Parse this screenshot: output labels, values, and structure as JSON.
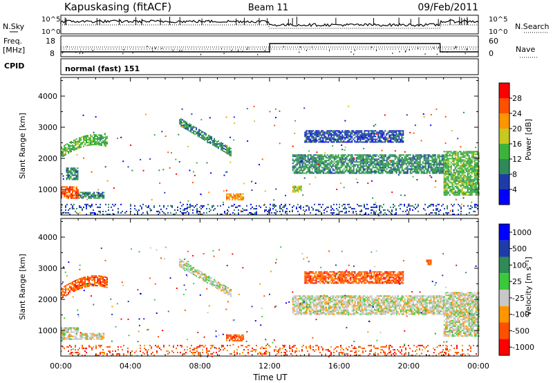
{
  "header": {
    "station": "Kapuskasing (fitACF)",
    "beam": "Beam 11",
    "date": "09/Feb/2011"
  },
  "strips": {
    "nsky": {
      "label": "N.Sky",
      "ticks": [
        "10^5",
        "10^0"
      ],
      "right_label": "N.Search",
      "right_ticks": [
        "10^5",
        "10^0"
      ]
    },
    "freq": {
      "label_line1": "Freq.",
      "label_line2": "[MHz]",
      "ticks": [
        "18",
        "8"
      ],
      "right_label": "Nave",
      "right_ticks": [
        "60",
        "0"
      ]
    },
    "cpid": {
      "label": "CPID",
      "value": "normal (fast) 151"
    }
  },
  "colors": {
    "power": [
      "#0000ff",
      "#1e3ca8",
      "#2e8b57",
      "#3cb43c",
      "#c8c820",
      "#ff9600",
      "#ff5000",
      "#ff0000"
    ],
    "velocity": [
      "#0000ff",
      "#1e3ca8",
      "#2e8b57",
      "#3cc83c",
      "#c8c8c8",
      "#ff9600",
      "#ff5000",
      "#ff0000"
    ]
  },
  "chart_data": [
    {
      "type": "heatmap",
      "title": "",
      "xlabel": "Time UT",
      "ylabel": "Slant Range [km]",
      "xlim": [
        "00:00",
        "24:00"
      ],
      "ylim": [
        180,
        4600
      ],
      "x_ticks": [
        "00:00",
        "04:00",
        "08:00",
        "12:00",
        "16:00",
        "20:00",
        "00:00"
      ],
      "y_ticks": [
        "1000",
        "2000",
        "3000",
        "4000"
      ],
      "colorbar": {
        "label": "Power [dB]",
        "ticks": [
          "4",
          "8",
          "12",
          "16",
          "20",
          "24",
          "28"
        ]
      },
      "regions": [
        {
          "name": "near-range echo 00:00-01:00",
          "t": [
            0.0,
            1.0
          ],
          "range_km": [
            700,
            1100
          ],
          "value_db": 26
        },
        {
          "name": "near-range echo 01:00-02:30",
          "t": [
            1.0,
            2.5
          ],
          "range_km": [
            700,
            900
          ],
          "value_db": 10
        },
        {
          "name": "arc 00:00-02:40",
          "t": [
            0.0,
            2.7
          ],
          "range_km": [
            2000,
            2700
          ],
          "value_db": 12
        },
        {
          "name": "echo 00:20-01:00",
          "t": [
            0.3,
            1.0
          ],
          "range_km": [
            1300,
            1700
          ],
          "value_db": 10
        },
        {
          "name": "descending arc 06:50-09:50",
          "t": [
            6.8,
            9.8
          ],
          "range_km": [
            2100,
            3200
          ],
          "value_db": 8
        },
        {
          "name": "echo 09:30-10:30",
          "t": [
            9.5,
            10.5
          ],
          "range_km": [
            650,
            850
          ],
          "value_db": 20
        },
        {
          "name": "echo 13:20-13:50",
          "t": [
            13.3,
            13.8
          ],
          "range_km": [
            900,
            1100
          ],
          "value_db": 16
        },
        {
          "name": "band 13:30-22:00",
          "t": [
            13.3,
            22.0
          ],
          "range_km": [
            1500,
            2100
          ],
          "value_db": 8
        },
        {
          "name": "band 14:00-19:40",
          "t": [
            14.0,
            19.7
          ],
          "range_km": [
            2500,
            2900
          ],
          "value_db": 6
        },
        {
          "name": "echo 22:00-24:00",
          "t": [
            22.0,
            24.0
          ],
          "range_km": [
            800,
            2200
          ],
          "value_db": 14
        },
        {
          "name": "near-range noise 00:00-24:00",
          "t": [
            0.0,
            24.0
          ],
          "range_km": [
            180,
            500
          ],
          "value_db": 5
        }
      ]
    },
    {
      "type": "heatmap",
      "title": "",
      "xlabel": "Time UT",
      "ylabel": "Slant Range [km]",
      "xlim": [
        "00:00",
        "24:00"
      ],
      "ylim": [
        180,
        4600
      ],
      "x_ticks": [
        "00:00",
        "04:00",
        "08:00",
        "12:00",
        "16:00",
        "20:00",
        "00:00"
      ],
      "y_ticks": [
        "1000",
        "2000",
        "3000",
        "4000"
      ],
      "colorbar": {
        "label": "Velocity [m s⁻¹]",
        "ticks": [
          "1000",
          "500",
          "100",
          "25",
          "-25",
          "-100",
          "-500",
          "-1000"
        ]
      },
      "regions": [
        {
          "name": "near-range echo 00:00-01:00",
          "t": [
            0.0,
            1.0
          ],
          "range_km": [
            700,
            1100
          ],
          "value_ms": 0
        },
        {
          "name": "near-range echo 01:00-02:30",
          "t": [
            1.0,
            2.5
          ],
          "range_km": [
            700,
            900
          ],
          "value_ms": 0
        },
        {
          "name": "arc 00:00-02:40",
          "t": [
            0.0,
            2.7
          ],
          "range_km": [
            2000,
            2700
          ],
          "value_ms": -150
        },
        {
          "name": "descending arc 06:50-09:50",
          "t": [
            6.8,
            9.8
          ],
          "range_km": [
            2100,
            3200
          ],
          "value_ms": 0
        },
        {
          "name": "echo 09:30-10:30",
          "t": [
            9.5,
            10.5
          ],
          "range_km": [
            650,
            850
          ],
          "value_ms": -150
        },
        {
          "name": "band 13:30-22:00",
          "t": [
            13.3,
            22.0
          ],
          "range_km": [
            1500,
            2100
          ],
          "value_ms": 0
        },
        {
          "name": "band 14:00-19:40",
          "t": [
            14.0,
            19.7
          ],
          "range_km": [
            2500,
            2900
          ],
          "value_ms": -500
        },
        {
          "name": "echo 21:00-21:20",
          "t": [
            21.0,
            21.3
          ],
          "range_km": [
            3100,
            3250
          ],
          "value_ms": -300
        },
        {
          "name": "echo 22:00-24:00",
          "t": [
            22.0,
            24.0
          ],
          "range_km": [
            800,
            2200
          ],
          "value_ms": 0
        },
        {
          "name": "near-range noise 00:00-24:00",
          "t": [
            0.0,
            24.0
          ],
          "range_km": [
            180,
            500
          ],
          "value_ms": -150
        }
      ]
    }
  ]
}
